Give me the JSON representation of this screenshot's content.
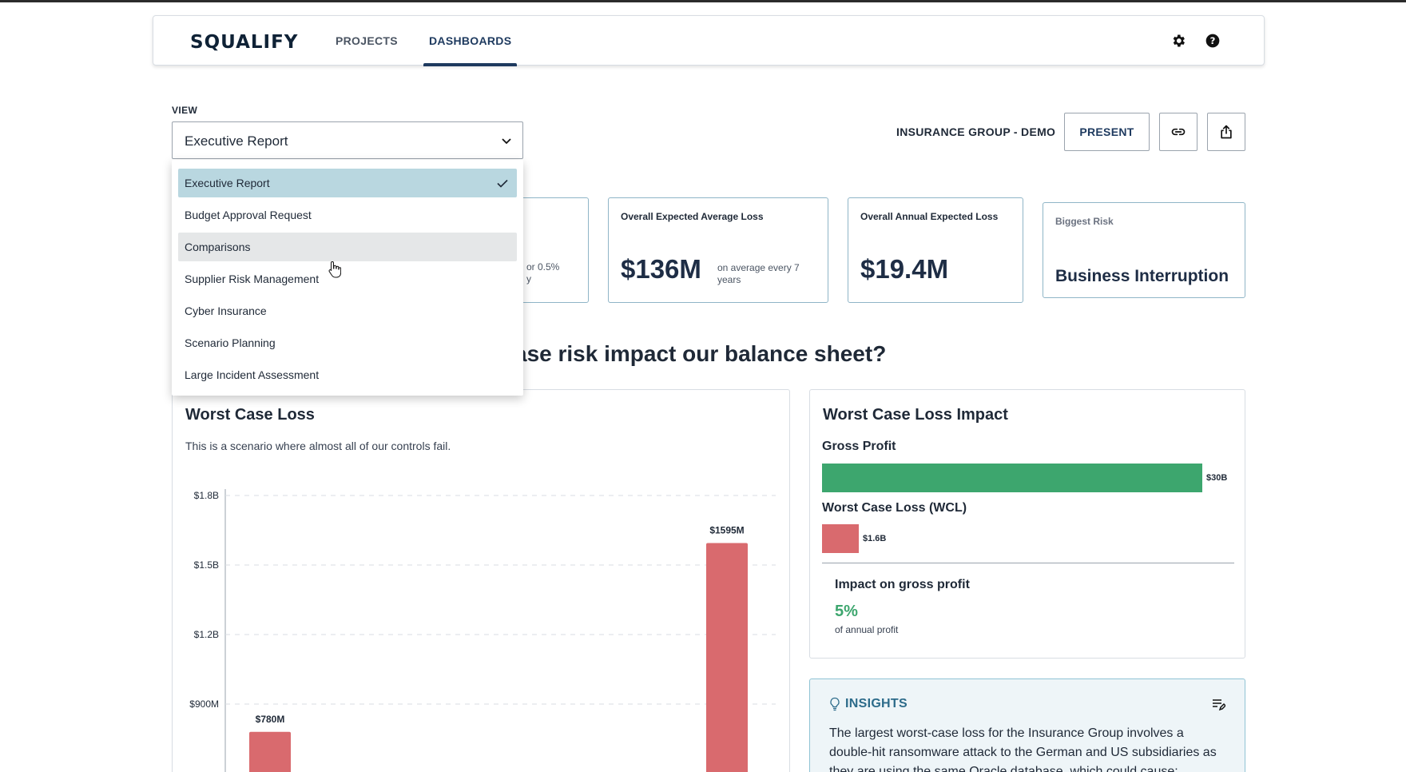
{
  "brand": {
    "logo_text": "SQUALIFY"
  },
  "nav": {
    "tabs": [
      {
        "label": "PROJECTS"
      },
      {
        "label": "DASHBOARDS",
        "active": true
      }
    ]
  },
  "view": {
    "label": "VIEW",
    "selected": "Executive Report",
    "options": [
      "Executive Report",
      "Budget Approval Request",
      "Comparisons",
      "Supplier Risk Management",
      "Cyber Insurance",
      "Scenario Planning",
      "Large Incident Assessment"
    ],
    "hovered_index": 2
  },
  "toolbar": {
    "org_name": "INSURANCE GROUP - DEMO",
    "present_label": "PRESENT"
  },
  "kpis": {
    "card1_small": "or 0.5%\ny",
    "expected_avg_loss": {
      "title": "Overall Expected Average Loss",
      "value": "$136M",
      "note": "on average every 7 years"
    },
    "annual_expected_loss": {
      "title": "Overall Annual Expected Loss",
      "value": "$19.4M"
    },
    "biggest_risk": {
      "title": "Biggest Risk",
      "value": "Business Interruption"
    }
  },
  "section_question": "ase risk impact our balance sheet?",
  "worst_case_loss": {
    "title": "Worst Case Loss",
    "description": "This is a scenario where almost all of our controls fail."
  },
  "chart_data": {
    "type": "bar",
    "title": "Worst Case Loss",
    "ylabel": "",
    "y_ticks": [
      "$900M",
      "$1.2B",
      "$1.5B",
      "$1.8B"
    ],
    "y_tick_values": [
      900,
      1200,
      1500,
      1800
    ],
    "ylim": [
      600,
      1800
    ],
    "units": "M",
    "bars": [
      {
        "label": "$780M",
        "value": 780,
        "color": "#d96a6e"
      },
      {
        "label": "$1595M",
        "value": 1595,
        "color": "#d96a6e"
      }
    ]
  },
  "impact": {
    "title": "Worst Case Loss Impact",
    "gross_profit_label": "Gross Profit",
    "gross_profit_value": "$30B",
    "gross_profit_amount": 30,
    "wcl_label": "Worst Case Loss (WCL)",
    "wcl_value": "$1.6B",
    "wcl_amount": 1.6,
    "impact_title": "Impact on gross profit",
    "impact_pct": "5%",
    "impact_sub": "of annual profit"
  },
  "insights": {
    "title": "INSIGHTS",
    "text": "The largest worst-case loss for the Insurance Group involves a double-hit ransomware attack to the German and US subsidiaries as they are using the same Oracle database, which could cause:"
  },
  "colors": {
    "accent": "#1e3a5f",
    "green": "#3da66e",
    "red": "#d96a6e",
    "selected": "#b9d7e0"
  }
}
